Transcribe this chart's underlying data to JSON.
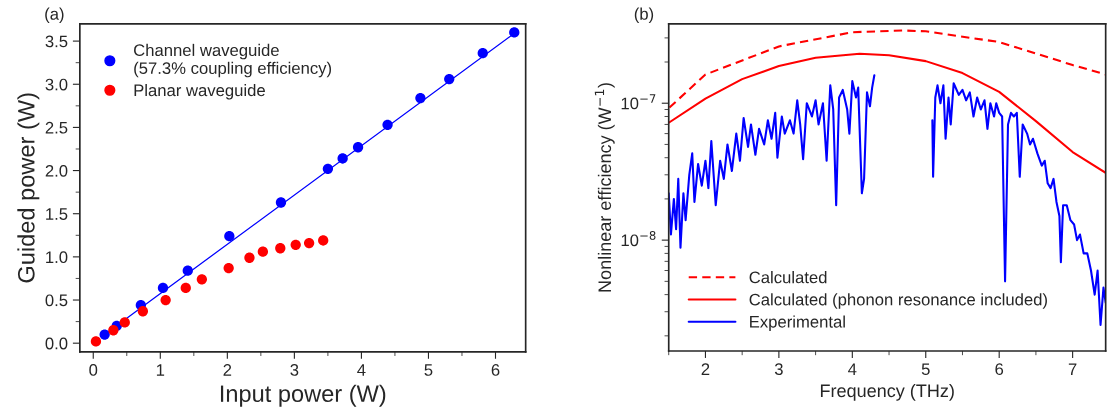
{
  "chart_data": [
    {
      "type": "scatter",
      "title": "(a)",
      "xlabel": "Input power (W)",
      "ylabel": "Guided power (W)",
      "xlim": [
        -0.2,
        6.45
      ],
      "ylim": [
        -0.1,
        3.7
      ],
      "xticks": [
        0,
        1,
        2,
        3,
        4,
        5,
        6
      ],
      "yticks": [
        {
          "value": 0,
          "label": "0.0"
        },
        0.5,
        {
          "value": 1,
          "label": "1.0"
        },
        1.5,
        {
          "value": 2,
          "label": "2.0"
        },
        2.5,
        {
          "value": 3,
          "label": "3.0"
        },
        3.5
      ],
      "legend": "top left",
      "grid": false,
      "series": [
        {
          "name": "Channel waveguide\n(57.3% coupling efficiency)",
          "color": "#0000ff",
          "marker": "circle",
          "x": [
            0.17,
            0.35,
            0.71,
            1.04,
            1.41,
            2.03,
            2.8,
            3.5,
            3.72,
            3.95,
            4.39,
            4.88,
            5.31,
            5.81,
            6.28
          ],
          "values": [
            0.1,
            0.2,
            0.44,
            0.64,
            0.84,
            1.24,
            1.63,
            2.02,
            2.14,
            2.27,
            2.53,
            2.84,
            3.06,
            3.36,
            3.6
          ]
        },
        {
          "name": "Planar waveguide",
          "color": "#ff0000",
          "marker": "circle",
          "x": [
            0.04,
            0.3,
            0.47,
            0.74,
            1.08,
            1.38,
            1.62,
            2.02,
            2.33,
            2.53,
            2.79,
            3.02,
            3.22,
            3.43
          ],
          "values": [
            0.02,
            0.15,
            0.24,
            0.37,
            0.5,
            0.64,
            0.74,
            0.87,
            0.99,
            1.06,
            1.1,
            1.14,
            1.16,
            1.19
          ]
        },
        {
          "type": "line",
          "color": "#0000ff",
          "x": [
            0.15,
            6.3
          ],
          "values": [
            0.09,
            3.6
          ]
        }
      ]
    },
    {
      "type": "line",
      "title": "(b)",
      "xlabel": "Frequency (THz)",
      "ylabel": "Nonlinear efficiency (W$^{−1}$)",
      "log": "y",
      "xlim": [
        1.5,
        7.45
      ],
      "ylim": [
        1.55e-09,
        3.8e-07
      ],
      "xticks": [
        2,
        3,
        4,
        5,
        6,
        7
      ],
      "yticks": [
        {
          "value": 1e-08,
          "label": "10$^{−8}$"
        },
        {
          "value": 1e-07,
          "label": "10$^{−7}$"
        }
      ],
      "legend": "bottom left",
      "grid": false,
      "series": [
        {
          "name": "Calculated",
          "color": "#ff0000",
          "line_style": "dashed",
          "x": [
            1.51,
            2,
            3,
            4,
            4.7,
            5,
            6,
            7,
            7.45
          ],
          "values": [
            9.3e-08,
            1.62e-07,
            2.6e-07,
            3.3e-07,
            3.4e-07,
            3.35e-07,
            2.8e-07,
            1.9e-07,
            1.62e-07
          ]
        },
        {
          "name": "Calculated (phonon resonance included)",
          "color": "#ff0000",
          "line_style": "solid",
          "x": [
            1.5,
            2,
            2.5,
            3,
            3.5,
            4.1,
            4.5,
            5,
            5.5,
            6,
            6.5,
            7,
            7.45
          ],
          "values": [
            7.2e-08,
            1.08e-07,
            1.5e-07,
            1.87e-07,
            2.15e-07,
            2.3e-07,
            2.24e-07,
            2.03e-07,
            1.66e-07,
            1.21e-07,
            7.4e-08,
            4.4e-08,
            3.1e-08
          ]
        },
        {
          "name": "Experimental",
          "color": "#0000ff",
          "line_style": "solid",
          "x": [
            1.5,
            1.53,
            1.57,
            1.6,
            1.63,
            1.66,
            1.7,
            1.73,
            1.78,
            1.82,
            1.85,
            1.9,
            1.95,
            2.0,
            2.04,
            2.08,
            2.14,
            2.2,
            2.25,
            2.3,
            2.36,
            2.42,
            2.47,
            2.52,
            2.58,
            2.62,
            2.68,
            2.73,
            2.8,
            2.85,
            2.9,
            2.95,
            2.98,
            3.04,
            3.08,
            3.15,
            3.2,
            3.25,
            3.29,
            3.33,
            3.38,
            3.45,
            3.5,
            3.54,
            3.6,
            3.65,
            3.7,
            3.74,
            3.78,
            3.82,
            3.87,
            3.93,
            3.96,
            4.0,
            4.05,
            4.08,
            4.13,
            4.16,
            4.2,
            4.24,
            4.27,
            4.3,
            4.7,
            5.09,
            5.1,
            5.13,
            5.16,
            5.2,
            5.24,
            5.27,
            5.31,
            5.34,
            5.38,
            5.45,
            5.5,
            5.55,
            5.6,
            5.65,
            5.7,
            5.75,
            5.8,
            5.84,
            5.88,
            5.93,
            5.96,
            6.0,
            6.04,
            6.08,
            6.12,
            6.16,
            6.2,
            6.24,
            6.28,
            6.32,
            6.38,
            6.42,
            6.46,
            6.52,
            6.58,
            6.62,
            6.66,
            6.7,
            6.74,
            6.78,
            6.82,
            6.84,
            6.87,
            6.92,
            6.97,
            7.02,
            7.06,
            7.1,
            7.15,
            7.2,
            7.25,
            7.3,
            7.34,
            7.38,
            7.42,
            7.45
          ],
          "values": [
            2.2e-08,
            1.1e-08,
            2e-08,
            1.2e-08,
            2.8e-08,
            8.8e-09,
            2.2e-08,
            1.4e-08,
            3e-08,
            4.3e-08,
            1.9e-08,
            3.6e-08,
            2.5e-08,
            3.8e-08,
            2.4e-08,
            5.3e-08,
            1.8e-08,
            3.8e-08,
            2.8e-08,
            5e-08,
            3.2e-08,
            6e-08,
            3.8e-08,
            7.8e-08,
            4.8e-08,
            7e-08,
            4.2e-08,
            6.5e-08,
            5e-08,
            7.5e-08,
            5.5e-08,
            8.5e-08,
            4e-08,
            8e-08,
            6e-08,
            7.5e-08,
            6e-08,
            1.05e-07,
            7e-08,
            3.9e-08,
            1e-07,
            8e-08,
            1.05e-07,
            7e-08,
            1e-07,
            3.8e-08,
            1.35e-07,
            9e-08,
            1.8e-08,
            1.1e-07,
            1.25e-07,
            9e-08,
            6e-08,
            1.45e-07,
            1.1e-07,
            1.3e-07,
            2.2e-08,
            2.8e-08,
            1.2e-07,
            9.5e-08,
            1.3e-07,
            1.6e-07,
            null,
            7.5e-08,
            2.9e-08,
            1.1e-07,
            1.35e-07,
            1e-07,
            1.35e-07,
            5.5e-08,
            1.1e-07,
            7e-08,
            1.4e-07,
            1.15e-07,
            1.25e-07,
            1.05e-07,
            1.2e-07,
            8e-08,
            1.1e-07,
            9e-08,
            1.05e-07,
            6.5e-08,
            1e-07,
            8e-08,
            1e-07,
            8.5e-08,
            8e-08,
            5e-09,
            7e-08,
            8.5e-08,
            8e-08,
            8.5e-08,
            2.9e-08,
            7e-08,
            6e-08,
            5e-08,
            5.5e-08,
            4.3e-08,
            3.5e-08,
            3.8e-08,
            2.6e-08,
            2.4e-08,
            2.8e-08,
            1.9e-08,
            1.5e-08,
            6.9e-09,
            1.8e-08,
            1.8e-08,
            1.4e-08,
            1.3e-08,
            1e-08,
            1.1e-08,
            8e-09,
            8e-09,
            6e-09,
            4e-09,
            6e-09,
            2.4e-09,
            4.5e-09,
            3.5e-09
          ]
        }
      ]
    }
  ]
}
